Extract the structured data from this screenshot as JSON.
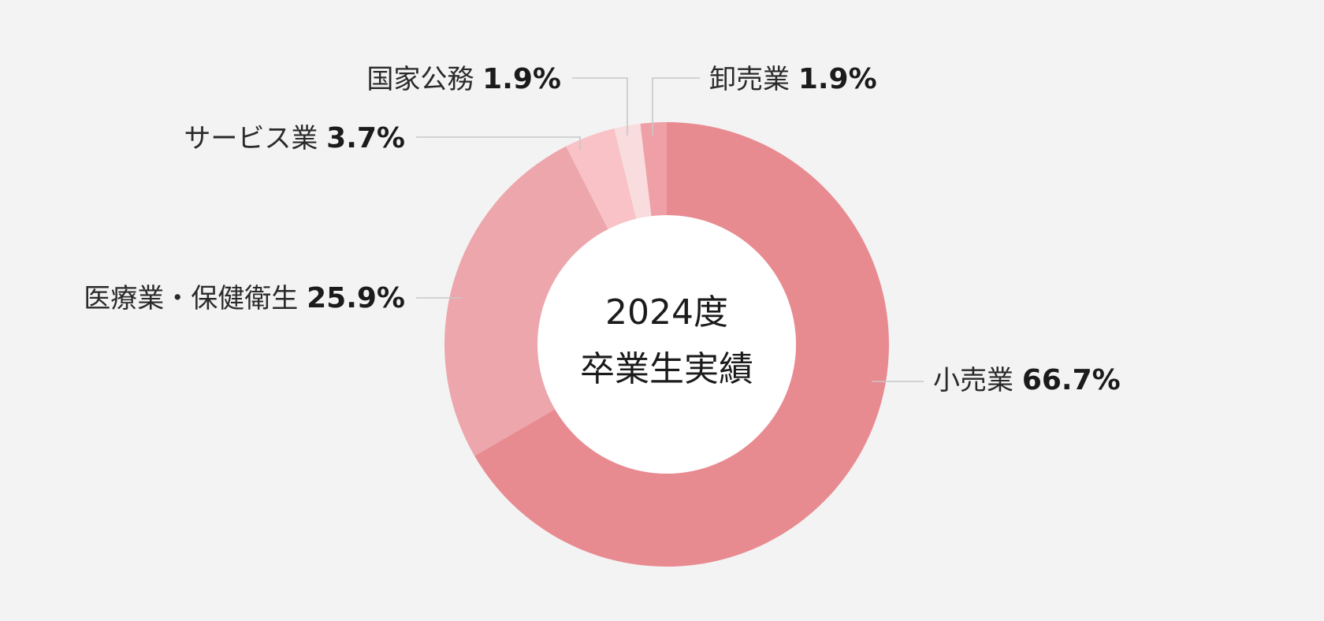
{
  "chart_data": {
    "type": "pie",
    "style": "donut",
    "center_text": [
      "2024度",
      "卒業生実績"
    ],
    "slices": [
      {
        "label": "小売業",
        "value_text": "66.7%",
        "value": 66.7,
        "color": "#e88b91"
      },
      {
        "label": "医療業・保健衛生",
        "value_text": "25.9%",
        "value": 25.9,
        "color": "#eda6ab"
      },
      {
        "label": "サービス業",
        "value_text": "3.7%",
        "value": 3.7,
        "color": "#f8c2c6"
      },
      {
        "label": "国家公務",
        "value_text": "1.9%",
        "value": 1.9,
        "color": "#f9dcdd"
      },
      {
        "label": "卸売業",
        "value_text": "1.9%",
        "value": 1.9,
        "color": "#efa0a6"
      }
    ],
    "colors": {
      "background": "#f3f3f3",
      "leader_line": "#c7c7c7",
      "center_fill": "#ffffff",
      "text": "#1b1b1b"
    }
  }
}
